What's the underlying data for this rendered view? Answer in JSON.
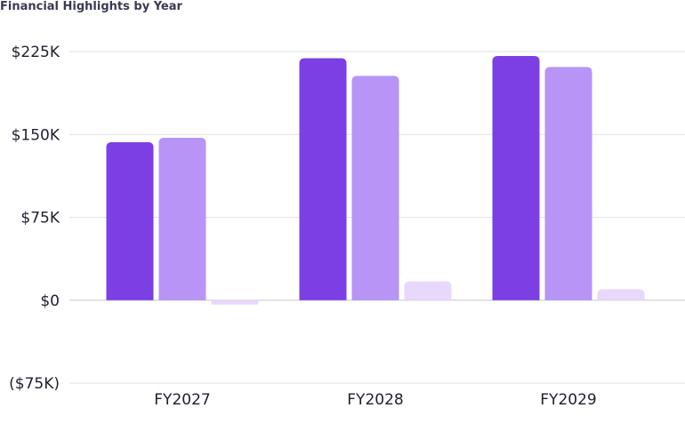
{
  "colors": {
    "series": [
      "#7b3fe4",
      "#b794f6",
      "#e7d8fc"
    ],
    "grid": "#e2e2e8",
    "text": "#1f1f2e",
    "title": "#3a3a55"
  },
  "chart_data": {
    "type": "bar",
    "title": "Financial Highlights by Year",
    "xlabel": "",
    "ylabel": "",
    "categories": [
      "FY2027",
      "FY2028",
      "FY2029"
    ],
    "series": [
      {
        "values": [
          143000,
          219000,
          221000
        ]
      },
      {
        "values": [
          147000,
          203000,
          211000
        ]
      },
      {
        "values": [
          -4000,
          17000,
          10000
        ]
      }
    ],
    "ylim": [
      -75000,
      225000
    ],
    "yticks": [
      225000,
      150000,
      75000,
      0,
      -75000
    ],
    "ytick_labels": [
      "$225K",
      "$150K",
      "$75K",
      "$0",
      "($75K)"
    ],
    "grid": true,
    "legend": "none"
  }
}
